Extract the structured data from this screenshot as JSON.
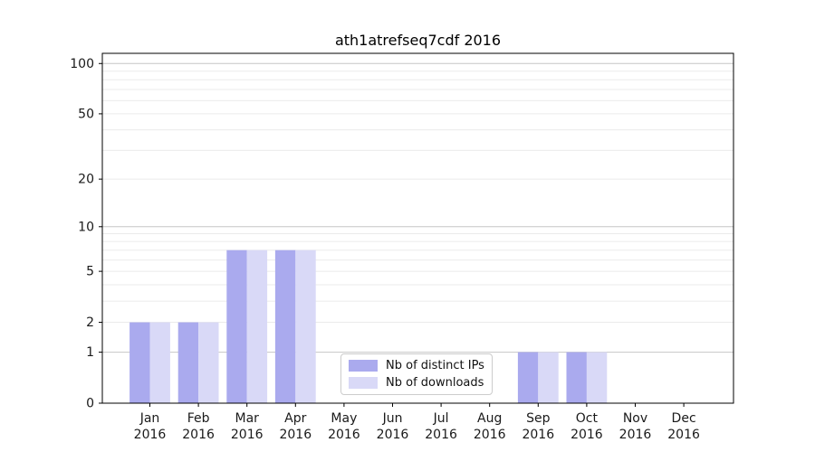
{
  "chart_data": {
    "type": "bar",
    "title": "ath1atrefseq7cdf 2016",
    "categories": [
      "Jan",
      "Feb",
      "Mar",
      "Apr",
      "May",
      "Jun",
      "Jul",
      "Aug",
      "Sep",
      "Oct",
      "Nov",
      "Dec"
    ],
    "year_label": "2016",
    "series": [
      {
        "name": "Nb of distinct IPs",
        "color": "#aaaaee",
        "values": [
          2,
          2,
          7,
          7,
          0,
          0,
          0,
          0,
          1,
          1,
          0,
          0
        ]
      },
      {
        "name": "Nb of downloads",
        "color": "#d9d9f7",
        "values": [
          2,
          2,
          7,
          7,
          0,
          0,
          0,
          0,
          1,
          1,
          0,
          0
        ]
      }
    ],
    "yscale": "log10(1+y)",
    "ylim": [
      0,
      115
    ],
    "yticks": [
      0,
      1,
      2,
      5,
      10,
      20,
      50,
      100
    ],
    "gridlines_major": [
      1,
      10,
      100
    ],
    "gridlines_minor": [
      2,
      3,
      4,
      5,
      6,
      7,
      8,
      9,
      20,
      30,
      40,
      50,
      60,
      70,
      80,
      90
    ],
    "grid": "horizontal",
    "legend_position": "inside-bottom-center",
    "colors": {
      "grid_major": "#c6c6c6",
      "grid_minor": "#ebebeb",
      "axis": "#000000",
      "tick_text": "#1a1a1a"
    }
  }
}
